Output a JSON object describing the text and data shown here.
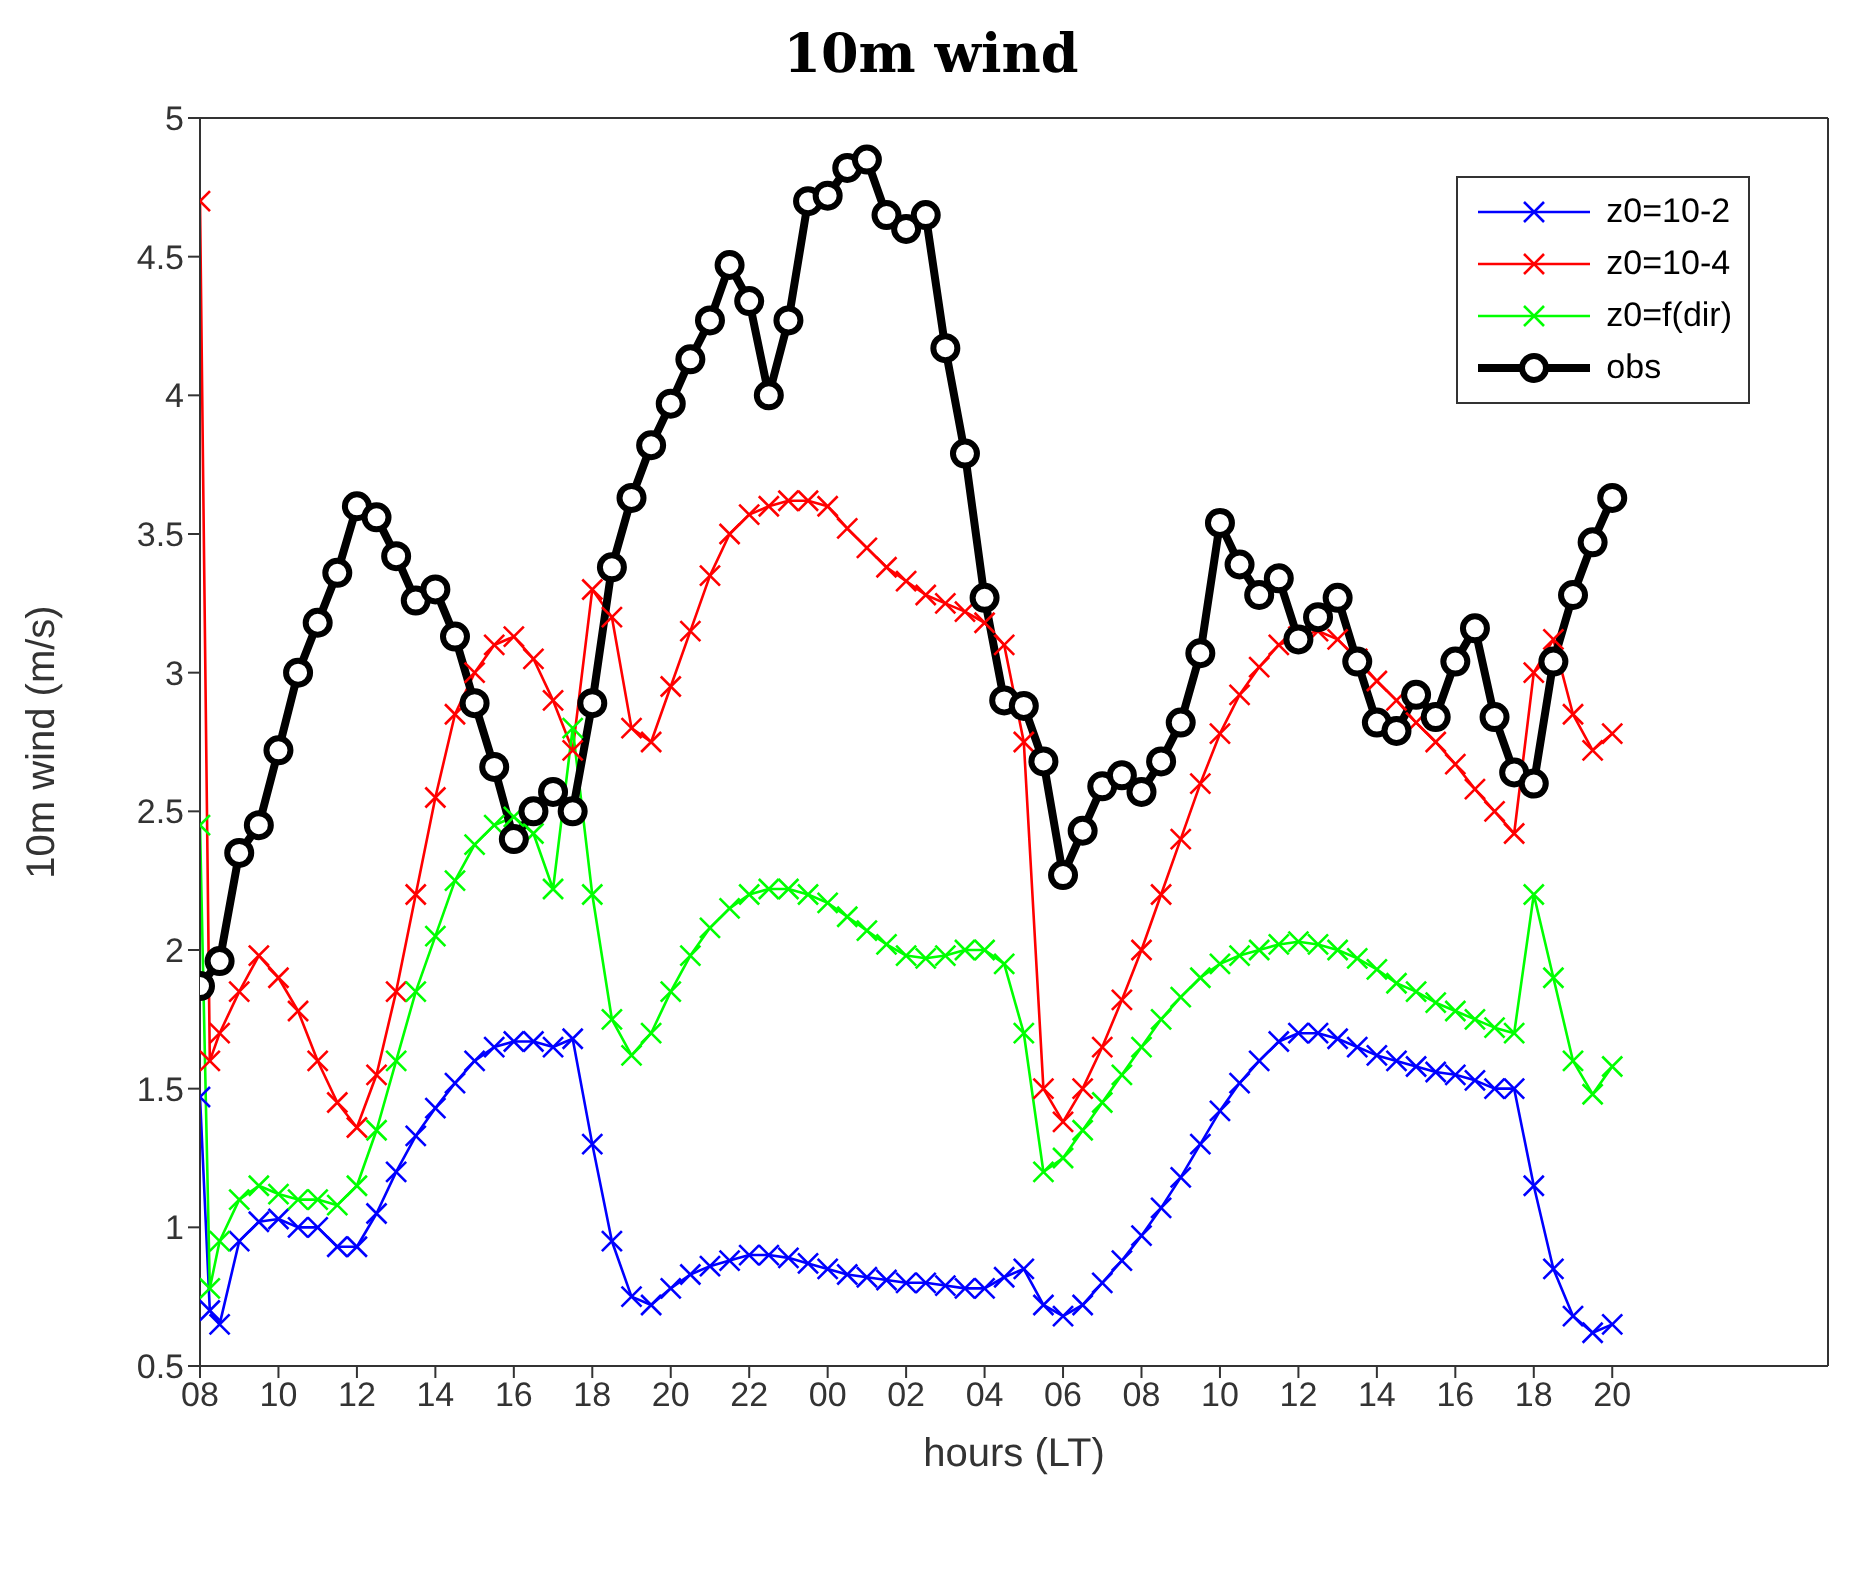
{
  "chart_data": {
    "type": "line",
    "title": "10m wind",
    "xlabel": "hours (LT)",
    "ylabel": "10m wind (m/s)",
    "xlim": [
      8,
      49.5
    ],
    "ylim": [
      0.5,
      5
    ],
    "xticks": [
      {
        "value": 8,
        "label": "08"
      },
      {
        "value": 10,
        "label": "10"
      },
      {
        "value": 12,
        "label": "12"
      },
      {
        "value": 14,
        "label": "14"
      },
      {
        "value": 16,
        "label": "16"
      },
      {
        "value": 18,
        "label": "18"
      },
      {
        "value": 20,
        "label": "20"
      },
      {
        "value": 22,
        "label": "22"
      },
      {
        "value": 24,
        "label": "00"
      },
      {
        "value": 26,
        "label": "02"
      },
      {
        "value": 28,
        "label": "04"
      },
      {
        "value": 30,
        "label": "06"
      },
      {
        "value": 32,
        "label": "08"
      },
      {
        "value": 34,
        "label": "10"
      },
      {
        "value": 36,
        "label": "12"
      },
      {
        "value": 38,
        "label": "14"
      },
      {
        "value": 40,
        "label": "16"
      },
      {
        "value": 42,
        "label": "18"
      },
      {
        "value": 44,
        "label": "20"
      }
    ],
    "yticks": [
      0.5,
      1,
      1.5,
      2,
      2.5,
      3,
      3.5,
      4,
      4.5,
      5
    ],
    "legend": "top right",
    "line_style": "solid",
    "series": [
      {
        "name": "z0=10-2",
        "color": "#0000ff",
        "marker": "cross",
        "x": [
          8,
          8.25,
          8.5,
          9,
          9.5,
          10,
          10.5,
          11,
          11.5,
          12,
          12.5,
          13,
          13.5,
          14,
          14.5,
          15,
          15.5,
          16,
          16.5,
          17,
          17.5,
          18,
          18.5,
          19,
          19.5,
          20,
          20.5,
          21,
          21.5,
          22,
          22.5,
          23,
          23.5,
          24,
          24.5,
          25,
          25.5,
          26,
          26.5,
          27,
          27.5,
          28,
          28.5,
          29,
          29.5,
          30,
          30.5,
          31,
          31.5,
          32,
          32.5,
          33,
          33.5,
          34,
          34.5,
          35,
          35.5,
          36,
          36.5,
          37,
          37.5,
          38,
          38.5,
          39,
          39.5,
          40,
          40.5,
          41,
          41.5,
          42,
          42.5,
          43,
          43.5,
          44
        ],
        "values": [
          1.47,
          0.7,
          0.65,
          0.95,
          1.02,
          1.03,
          1.0,
          1.0,
          0.93,
          0.93,
          1.05,
          1.2,
          1.33,
          1.43,
          1.52,
          1.6,
          1.65,
          1.67,
          1.67,
          1.65,
          1.68,
          1.3,
          0.95,
          0.75,
          0.72,
          0.78,
          0.83,
          0.86,
          0.88,
          0.9,
          0.9,
          0.89,
          0.87,
          0.85,
          0.83,
          0.82,
          0.81,
          0.8,
          0.8,
          0.79,
          0.78,
          0.78,
          0.82,
          0.85,
          0.72,
          0.68,
          0.72,
          0.8,
          0.88,
          0.97,
          1.07,
          1.18,
          1.3,
          1.42,
          1.52,
          1.6,
          1.67,
          1.7,
          1.7,
          1.68,
          1.65,
          1.62,
          1.6,
          1.58,
          1.56,
          1.55,
          1.53,
          1.5,
          1.5,
          1.15,
          0.85,
          0.68,
          0.62,
          0.65
        ]
      },
      {
        "name": "z0=10-4",
        "color": "#ff0000",
        "marker": "cross",
        "x": [
          8,
          8.25,
          8.5,
          9,
          9.5,
          10,
          10.5,
          11,
          11.5,
          12,
          12.5,
          13,
          13.5,
          14,
          14.5,
          15,
          15.5,
          16,
          16.5,
          17,
          17.5,
          18,
          18.5,
          19,
          19.5,
          20,
          20.5,
          21,
          21.5,
          22,
          22.5,
          23,
          23.5,
          24,
          24.5,
          25,
          25.5,
          26,
          26.5,
          27,
          27.5,
          28,
          28.5,
          29,
          29.5,
          30,
          30.5,
          31,
          31.5,
          32,
          32.5,
          33,
          33.5,
          34,
          34.5,
          35,
          35.5,
          36,
          36.5,
          37,
          37.5,
          38,
          38.5,
          39,
          39.5,
          40,
          40.5,
          41,
          41.5,
          42,
          42.5,
          43,
          43.5,
          44
        ],
        "values": [
          4.7,
          1.6,
          1.7,
          1.85,
          1.98,
          1.9,
          1.78,
          1.6,
          1.45,
          1.36,
          1.55,
          1.85,
          2.2,
          2.55,
          2.85,
          3.0,
          3.1,
          3.13,
          3.05,
          2.9,
          2.72,
          3.3,
          3.2,
          2.8,
          2.75,
          2.95,
          3.15,
          3.35,
          3.5,
          3.57,
          3.6,
          3.62,
          3.62,
          3.6,
          3.52,
          3.45,
          3.38,
          3.33,
          3.28,
          3.25,
          3.22,
          3.18,
          3.1,
          2.75,
          1.5,
          1.38,
          1.5,
          1.65,
          1.82,
          2.0,
          2.2,
          2.4,
          2.6,
          2.78,
          2.92,
          3.02,
          3.1,
          3.13,
          3.15,
          3.12,
          3.05,
          2.97,
          2.9,
          2.82,
          2.75,
          2.67,
          2.58,
          2.5,
          2.42,
          3.0,
          3.12,
          2.85,
          2.72,
          2.78
        ]
      },
      {
        "name": "z0=f(dir)",
        "color": "#00ff00",
        "marker": "cross",
        "x": [
          8,
          8.25,
          8.5,
          9,
          9.5,
          10,
          10.5,
          11,
          11.5,
          12,
          12.5,
          13,
          13.5,
          14,
          14.5,
          15,
          15.5,
          16,
          16.5,
          17,
          17.5,
          18,
          18.5,
          19,
          19.5,
          20,
          20.5,
          21,
          21.5,
          22,
          22.5,
          23,
          23.5,
          24,
          24.5,
          25,
          25.5,
          26,
          26.5,
          27,
          27.5,
          28,
          28.5,
          29,
          29.5,
          30,
          30.5,
          31,
          31.5,
          32,
          32.5,
          33,
          33.5,
          34,
          34.5,
          35,
          35.5,
          36,
          36.5,
          37,
          37.5,
          38,
          38.5,
          39,
          39.5,
          40,
          40.5,
          41,
          41.5,
          42,
          42.5,
          43,
          43.5,
          44
        ],
        "values": [
          2.45,
          0.78,
          0.95,
          1.1,
          1.15,
          1.12,
          1.1,
          1.1,
          1.08,
          1.15,
          1.35,
          1.6,
          1.85,
          2.05,
          2.25,
          2.38,
          2.45,
          2.48,
          2.42,
          2.22,
          2.8,
          2.2,
          1.75,
          1.62,
          1.7,
          1.85,
          1.98,
          2.08,
          2.15,
          2.2,
          2.22,
          2.22,
          2.2,
          2.17,
          2.12,
          2.07,
          2.02,
          1.98,
          1.97,
          1.98,
          2.0,
          2.0,
          1.95,
          1.7,
          1.2,
          1.25,
          1.35,
          1.45,
          1.55,
          1.65,
          1.75,
          1.83,
          1.9,
          1.95,
          1.98,
          2.0,
          2.02,
          2.03,
          2.02,
          2.0,
          1.97,
          1.93,
          1.88,
          1.85,
          1.81,
          1.78,
          1.75,
          1.72,
          1.7,
          2.2,
          1.9,
          1.6,
          1.48,
          1.58
        ]
      },
      {
        "name": "obs",
        "color": "#000000",
        "marker": "circle",
        "x": [
          8,
          8.5,
          9,
          9.5,
          10,
          10.5,
          11,
          11.5,
          12,
          12.5,
          13,
          13.5,
          14,
          14.5,
          15,
          15.5,
          16,
          16.5,
          17,
          17.5,
          18,
          18.5,
          19,
          19.5,
          20,
          20.5,
          21,
          21.5,
          22,
          22.5,
          23,
          23.5,
          24,
          24.5,
          25,
          25.5,
          26,
          26.5,
          27,
          27.5,
          28,
          28.5,
          29,
          29.5,
          30,
          30.5,
          31,
          31.5,
          32,
          32.5,
          33,
          33.5,
          34,
          34.5,
          35,
          35.5,
          36,
          36.5,
          37,
          37.5,
          38,
          38.5,
          39,
          39.5,
          40,
          40.5,
          41,
          41.5,
          42,
          42.5,
          43,
          43.5,
          44
        ],
        "values": [
          1.87,
          1.96,
          2.35,
          2.45,
          2.72,
          3.0,
          3.18,
          3.36,
          3.6,
          3.56,
          3.42,
          3.26,
          3.3,
          3.13,
          2.89,
          2.66,
          2.4,
          2.5,
          2.57,
          2.5,
          2.89,
          3.38,
          3.63,
          3.82,
          3.97,
          4.13,
          4.27,
          4.47,
          4.34,
          4.0,
          4.27,
          4.7,
          4.72,
          4.82,
          4.85,
          4.65,
          4.6,
          4.65,
          4.17,
          3.79,
          3.27,
          2.9,
          2.88,
          2.68,
          2.27,
          2.43,
          2.59,
          2.63,
          2.57,
          2.68,
          2.82,
          3.07,
          3.54,
          3.39,
          3.28,
          3.34,
          3.12,
          3.2,
          3.27,
          3.04,
          2.82,
          2.79,
          2.92,
          2.84,
          3.04,
          3.16,
          2.84,
          2.64,
          2.6,
          3.04,
          3.28,
          3.47,
          3.63
        ]
      }
    ]
  }
}
